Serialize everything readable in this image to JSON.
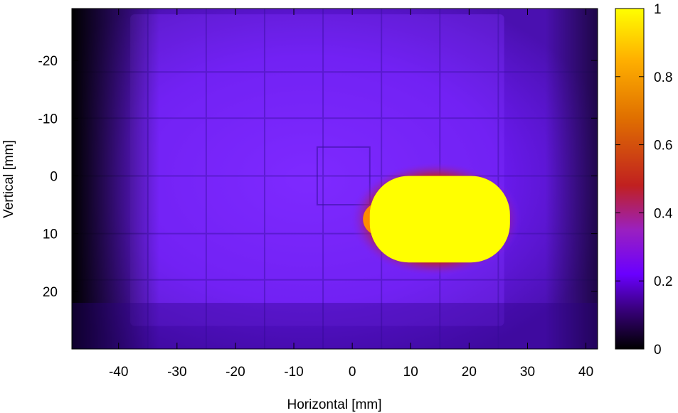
{
  "chart_data": {
    "type": "heatmap",
    "title": "",
    "xlabel": "Horizontal [mm]",
    "ylabel": "Vertical [mm]",
    "xlim": [
      -48,
      42
    ],
    "ylim": [
      -29,
      30
    ],
    "y_inverted": true,
    "x_ticks": [
      {
        "value": -40,
        "label": "-40"
      },
      {
        "value": -30,
        "label": "-30"
      },
      {
        "value": -20,
        "label": "-20"
      },
      {
        "value": -10,
        "label": "-10"
      },
      {
        "value": 0,
        "label": "0"
      },
      {
        "value": 10,
        "label": "10"
      },
      {
        "value": 20,
        "label": "20"
      },
      {
        "value": 30,
        "label": "30"
      },
      {
        "value": 40,
        "label": "40"
      }
    ],
    "y_ticks": [
      {
        "value": -20,
        "label": "-20"
      },
      {
        "value": -10,
        "label": "-10"
      },
      {
        "value": 0,
        "label": "0"
      },
      {
        "value": 10,
        "label": "10"
      },
      {
        "value": 20,
        "label": "20"
      }
    ],
    "colorbar": {
      "range": [
        0,
        1
      ],
      "ticks": [
        {
          "value": 0,
          "label": "0"
        },
        {
          "value": 0.2,
          "label": "0.2"
        },
        {
          "value": 0.4,
          "label": "0.4"
        },
        {
          "value": 0.6,
          "label": "0.6"
        },
        {
          "value": 0.8,
          "label": "0.8"
        },
        {
          "value": 1,
          "label": "1"
        }
      ],
      "palette": [
        "#000000",
        "#3a0080",
        "#6a00ff",
        "#9a20c0",
        "#c02020",
        "#e07000",
        "#ffb000",
        "#ffff00"
      ]
    },
    "background_level": 0.2,
    "hotspot": {
      "center_x": 15,
      "center_y": 7.5,
      "half_width_x": 12,
      "half_width_y": 7.5,
      "level": 1.0
    },
    "grid": false
  }
}
